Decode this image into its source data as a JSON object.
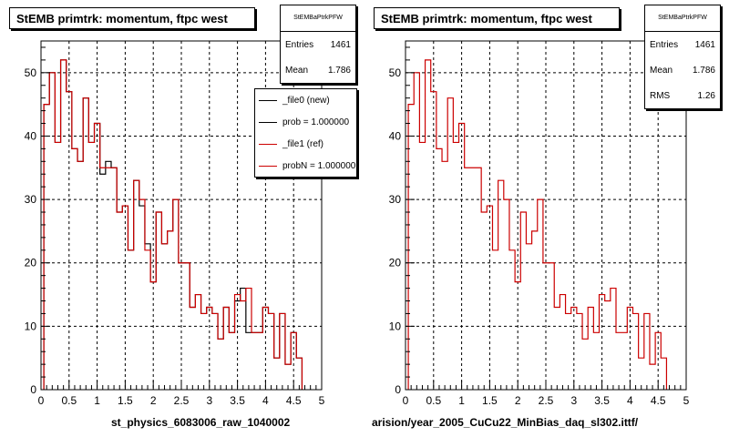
{
  "colors": {
    "new": "#000000",
    "ref": "#cc0000",
    "grid": "#000000"
  },
  "footer_text": "",
  "chart_data": [
    {
      "type": "histogram",
      "title": "StEMB primtrk: momentum, ftpc west",
      "xlabel": "st_physics_6083006_raw_1040002",
      "xlim": [
        0,
        5
      ],
      "ylim": [
        0,
        55
      ],
      "xticks": [
        0,
        0.5,
        1,
        1.5,
        2,
        2.5,
        3,
        3.5,
        4,
        4.5,
        5
      ],
      "xtick_labels": [
        "0",
        "0.5",
        "1",
        "1.5",
        "2",
        "2.5",
        "3",
        "3.5",
        "4",
        "4.5",
        "5"
      ],
      "yticks": [
        0,
        10,
        20,
        30,
        40,
        50
      ],
      "ytick_labels": [
        "0",
        "10",
        "20",
        "30",
        "40",
        "50"
      ],
      "grid": true,
      "bin_edges_start": 0.05,
      "bin_width": 0.1,
      "stats": {
        "title": "StEMBaPtrkPFW",
        "rows": [
          {
            "label": "Entries",
            "value": "1461"
          },
          {
            "label": "Mean",
            "value": "1.786"
          }
        ]
      },
      "legend": {
        "position": "top-right",
        "entries": [
          {
            "label": "_file0 (new)",
            "color": "#000000"
          },
          {
            "label": "prob = 1.000000",
            "color": "#000000"
          },
          {
            "label": "_file1 (ref)",
            "color": "#cc0000"
          },
          {
            "label": "probN = 1.000000",
            "color": "#cc0000"
          }
        ]
      },
      "series": [
        {
          "values": [
            45,
            50,
            39,
            52,
            47,
            38,
            36,
            46,
            39,
            42,
            34,
            36,
            35,
            28,
            29,
            22,
            33,
            29,
            23,
            17,
            28,
            23,
            25,
            30,
            20,
            20,
            13,
            15,
            12,
            13,
            12,
            8,
            13,
            9,
            14,
            16,
            9,
            9,
            9,
            13,
            12,
            5,
            12,
            4,
            9,
            5
          ],
          "color": "#000000"
        },
        {
          "values": [
            45,
            50,
            39,
            52,
            47,
            38,
            36,
            46,
            39,
            42,
            35,
            35,
            35,
            28,
            29,
            22,
            33,
            30,
            22,
            17,
            28,
            23,
            25,
            30,
            20,
            20,
            13,
            15,
            12,
            13,
            12,
            8,
            13,
            9,
            15,
            14,
            16,
            9,
            9,
            13,
            12,
            5,
            12,
            4,
            9,
            5
          ],
          "color": "#cc0000"
        }
      ]
    },
    {
      "type": "histogram",
      "title": "StEMB primtrk: momentum, ftpc west",
      "xlabel": "arision/year_2005_CuCu22_MinBias_daq_sl302.ittf/",
      "xlim": [
        0,
        5
      ],
      "ylim": [
        0,
        55
      ],
      "xticks": [
        0,
        0.5,
        1,
        1.5,
        2,
        2.5,
        3,
        3.5,
        4,
        4.5,
        5
      ],
      "xtick_labels": [
        "0",
        "0.5",
        "1",
        "1.5",
        "2",
        "2.5",
        "3",
        "3.5",
        "4",
        "4.5",
        "5"
      ],
      "yticks": [
        0,
        10,
        20,
        30,
        40,
        50
      ],
      "ytick_labels": [
        "0",
        "10",
        "20",
        "30",
        "40",
        "50"
      ],
      "grid": true,
      "bin_edges_start": 0.05,
      "bin_width": 0.1,
      "stats": {
        "title": "StEMBaPtrkPFW",
        "rows": [
          {
            "label": "Entries",
            "value": "1461"
          },
          {
            "label": "Mean",
            "value": "1.786"
          },
          {
            "label": "RMS",
            "value": "1.26"
          }
        ]
      },
      "series": [
        {
          "values": [
            45,
            50,
            39,
            52,
            47,
            38,
            36,
            46,
            39,
            42,
            35,
            35,
            35,
            28,
            29,
            22,
            33,
            30,
            22,
            17,
            28,
            23,
            25,
            30,
            20,
            20,
            13,
            15,
            12,
            13,
            12,
            8,
            13,
            9,
            15,
            14,
            16,
            9,
            9,
            13,
            12,
            5,
            12,
            4,
            9,
            5
          ],
          "color": "#cc0000"
        }
      ]
    }
  ]
}
